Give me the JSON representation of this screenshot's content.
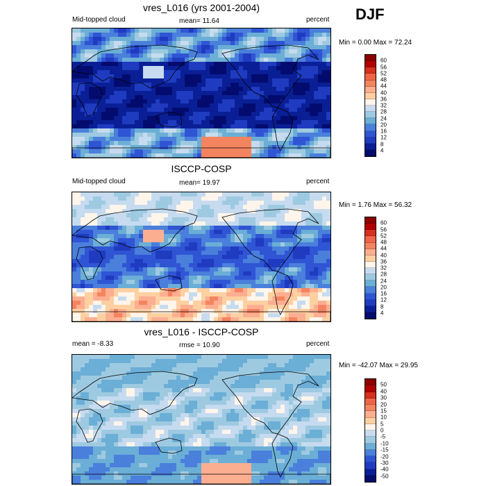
{
  "season": "DJF",
  "panels": [
    {
      "title": "vres_L016 (yrs 2001-2004)",
      "left_label": "Mid-topped cloud",
      "center_label": "mean=  11.64",
      "right_label": "percent",
      "minmax": "Min =   0.00 Max =  72.24"
    },
    {
      "title": "ISCCP-COSP",
      "left_label": "Mid-topped cloud",
      "center_label": "mean=  19.97",
      "right_label": "percent",
      "minmax": "Min =   1.76 Max =  56.32"
    },
    {
      "title": "vres_L016 - ISCCP-COSP",
      "left_label": "mean =  -8.33",
      "center_label": "rmse =  10.90",
      "right_label": "percent",
      "minmax": "Min = -42.07 Max =  29.95"
    }
  ],
  "chart_data": [
    {
      "type": "heatmap",
      "title": "vres_L016 (yrs 2001-2004)",
      "variable": "Mid-topped cloud",
      "units": "percent",
      "mean": 11.64,
      "min": 0.0,
      "max": 72.24,
      "colorbar_levels": [
        4,
        8,
        12,
        16,
        20,
        24,
        28,
        32,
        36,
        40,
        44,
        48,
        52,
        56,
        60
      ],
      "colorbar_labels": [
        "60",
        "56",
        "52",
        "48",
        "44",
        "40",
        "36",
        "32",
        "28",
        "24",
        "20",
        "16",
        "12",
        "8",
        "4"
      ],
      "colorbar_colors": [
        "#8c0000",
        "#b20000",
        "#d7301f",
        "#ef6548",
        "#f4845f",
        "#fcae91",
        "#fdd0a2",
        "#fff5eb",
        "#c6dbef",
        "#9ecae1",
        "#6baed6",
        "#4a7fdc",
        "#2f55d4",
        "#1f3bc0",
        "#0a1f96",
        "#030c6e"
      ]
    },
    {
      "type": "heatmap",
      "title": "ISCCP-COSP",
      "variable": "Mid-topped cloud",
      "units": "percent",
      "mean": 19.97,
      "min": 1.76,
      "max": 56.32,
      "colorbar_levels": [
        4,
        8,
        12,
        16,
        20,
        24,
        28,
        32,
        36,
        40,
        44,
        48,
        52,
        56,
        60
      ],
      "colorbar_labels": [
        "60",
        "56",
        "52",
        "48",
        "44",
        "40",
        "36",
        "32",
        "28",
        "24",
        "20",
        "16",
        "12",
        "8",
        "4"
      ],
      "colorbar_colors": [
        "#8c0000",
        "#b20000",
        "#d7301f",
        "#ef6548",
        "#f4845f",
        "#fcae91",
        "#fdd0a2",
        "#fff5eb",
        "#c6dbef",
        "#9ecae1",
        "#6baed6",
        "#4a7fdc",
        "#2f55d4",
        "#1f3bc0",
        "#0a1f96",
        "#030c6e"
      ]
    },
    {
      "type": "heatmap",
      "title": "vres_L016 - ISCCP-COSP",
      "units": "percent",
      "mean": -8.33,
      "rmse": 10.9,
      "min": -42.07,
      "max": 29.95,
      "colorbar_levels": [
        -50,
        -40,
        -30,
        -20,
        -15,
        -10,
        -5,
        0,
        5,
        10,
        15,
        20,
        30,
        40,
        50
      ],
      "colorbar_labels": [
        "50",
        "40",
        "30",
        "20",
        "15",
        "10",
        "5",
        "0",
        "-5",
        "-10",
        "-15",
        "-20",
        "-30",
        "-40",
        "-50"
      ],
      "colorbar_colors": [
        "#8c0000",
        "#b20000",
        "#d7301f",
        "#ef6548",
        "#f4845f",
        "#fcae91",
        "#fdd0a2",
        "#fff5eb",
        "#c6dbef",
        "#9ecae1",
        "#6baed6",
        "#4a7fdc",
        "#2f55d4",
        "#1f3bc0",
        "#0a1f96",
        "#030c6e"
      ]
    }
  ]
}
